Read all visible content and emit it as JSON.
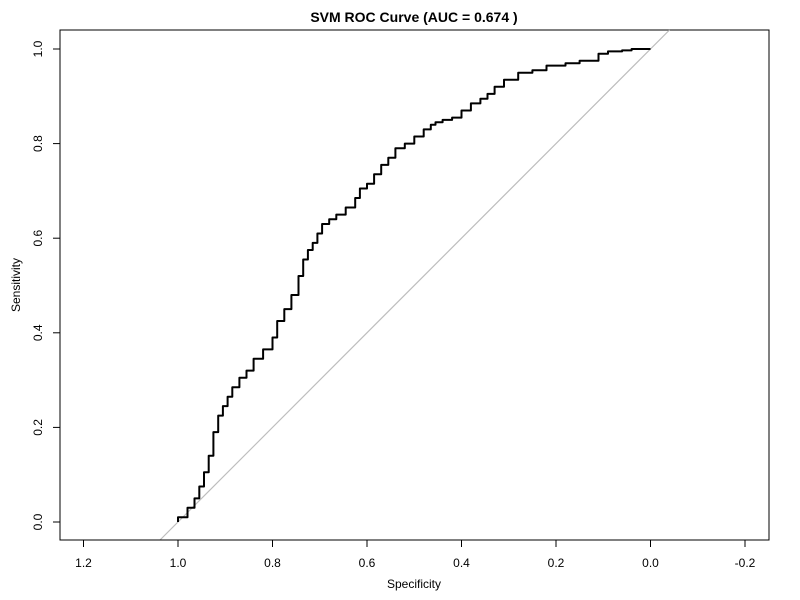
{
  "chart_data": {
    "type": "line",
    "title": "SVM ROC Curve (AUC = 0.674 )",
    "xlabel": "Specificity",
    "ylabel": "Sensitivity",
    "x_reversed": true,
    "xlim": [
      1.2,
      -0.2
    ],
    "ylim": [
      0.0,
      1.0
    ],
    "x_ticks": [
      1.2,
      1.0,
      0.8,
      0.6,
      0.4,
      0.2,
      0.0,
      -0.2
    ],
    "x_tick_labels": [
      "1.2",
      "1.0",
      "0.8",
      "0.6",
      "0.4",
      "0.2",
      "0.0",
      "-0.2"
    ],
    "y_ticks": [
      0.0,
      0.2,
      0.4,
      0.6,
      0.8,
      1.0
    ],
    "y_tick_labels": [
      "0.0",
      "0.2",
      "0.4",
      "0.6",
      "0.8",
      "1.0"
    ],
    "grid": false,
    "reference_line": {
      "from": [
        1.0,
        0.0
      ],
      "to": [
        0.0,
        1.0
      ],
      "color": "#bdbdbd"
    },
    "series": [
      {
        "color": "#000000",
        "x": [
          1.0,
          0.98,
          0.965,
          0.955,
          0.945,
          0.935,
          0.925,
          0.915,
          0.905,
          0.895,
          0.885,
          0.87,
          0.855,
          0.84,
          0.82,
          0.8,
          0.79,
          0.775,
          0.76,
          0.745,
          0.735,
          0.725,
          0.715,
          0.705,
          0.695,
          0.68,
          0.665,
          0.645,
          0.625,
          0.615,
          0.6,
          0.585,
          0.57,
          0.555,
          0.54,
          0.52,
          0.5,
          0.48,
          0.465,
          0.455,
          0.44,
          0.42,
          0.4,
          0.38,
          0.36,
          0.345,
          0.33,
          0.31,
          0.28,
          0.25,
          0.22,
          0.18,
          0.15,
          0.11,
          0.09,
          0.06,
          0.04,
          0.02,
          0.0
        ],
        "y": [
          0.0,
          0.01,
          0.03,
          0.05,
          0.075,
          0.105,
          0.14,
          0.19,
          0.225,
          0.245,
          0.265,
          0.285,
          0.305,
          0.32,
          0.345,
          0.365,
          0.39,
          0.425,
          0.45,
          0.48,
          0.52,
          0.555,
          0.575,
          0.59,
          0.61,
          0.63,
          0.64,
          0.65,
          0.665,
          0.685,
          0.705,
          0.715,
          0.735,
          0.755,
          0.77,
          0.79,
          0.8,
          0.815,
          0.83,
          0.84,
          0.845,
          0.85,
          0.855,
          0.87,
          0.885,
          0.895,
          0.905,
          0.92,
          0.935,
          0.95,
          0.955,
          0.965,
          0.97,
          0.975,
          0.99,
          0.995,
          0.997,
          1.0,
          1.0
        ]
      }
    ]
  }
}
